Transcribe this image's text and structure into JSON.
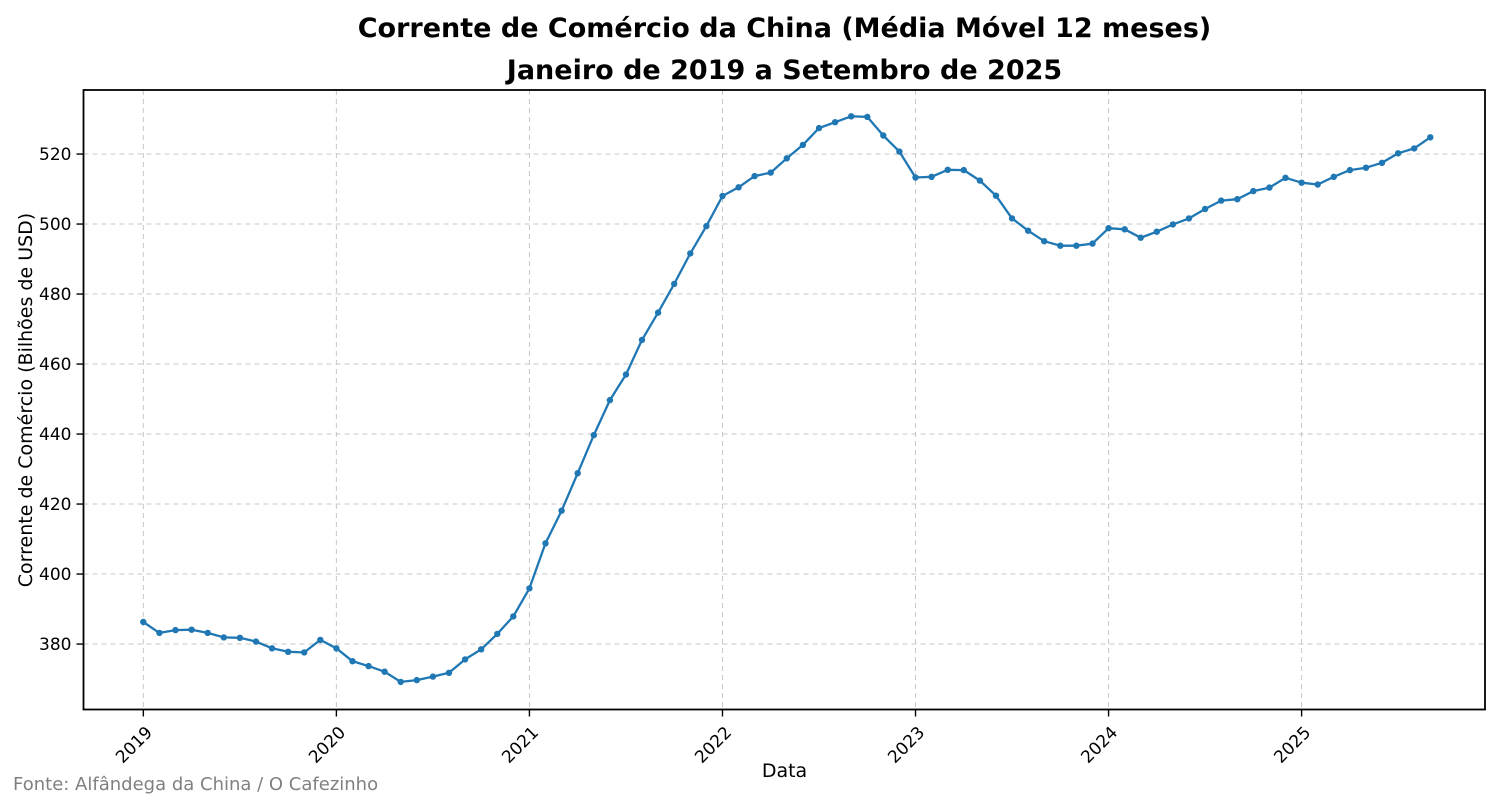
{
  "title": {
    "line1": "Corrente de Comércio da China (Média Móvel 12 meses)",
    "line2": "Janeiro de 2019 a Setembro de 2025"
  },
  "source_note": "Fonte: Alfândega da China / O Cafezinho",
  "colors": {
    "line": "#1f77b4",
    "grid": "#c7c7c7",
    "axis_border": "#000000",
    "tick_label": "#000000",
    "title": "#000000",
    "source": "#808080",
    "background": "#ffffff"
  },
  "chart_data": {
    "type": "line",
    "title": "Corrente de Comércio da China (Média Móvel 12 meses) — Janeiro de 2019 a Setembro de 2025",
    "xlabel": "Data",
    "ylabel": "Corrente de Comércio (Bilhões de USD)",
    "x_start": "2019-01",
    "x_end": "2025-09",
    "frequency": "monthly",
    "x_tick_labels": [
      "2019",
      "2020",
      "2021",
      "2022",
      "2023",
      "2024",
      "2025"
    ],
    "x_tick_month_indices": [
      0,
      12,
      24,
      36,
      48,
      60,
      72
    ],
    "y_ticks": [
      380,
      400,
      420,
      440,
      460,
      480,
      500,
      520
    ],
    "ylim": [
      361.3,
      538.3
    ],
    "xlim_month_indices": [
      -3.72,
      83.4
    ],
    "grid": "dashed",
    "legend": false,
    "marker": "circle",
    "series": [
      {
        "name": "Corrente de Comércio (média móvel 12 meses, bilhões de USD)",
        "color": "#1f77b4",
        "values": [
          386.3,
          383.2,
          384.0,
          384.1,
          383.2,
          381.9,
          381.8,
          380.7,
          378.8,
          377.8,
          377.6,
          381.2,
          378.8,
          375.1,
          373.7,
          372.1,
          369.2,
          369.7,
          370.7,
          371.8,
          375.6,
          378.5,
          382.9,
          387.9,
          395.9,
          408.8,
          418.1,
          428.8,
          439.7,
          449.7,
          457.0,
          466.9,
          474.7,
          482.9,
          491.6,
          499.4,
          508.0,
          510.5,
          513.7,
          514.7,
          518.8,
          522.6,
          527.4,
          529.1,
          530.8,
          530.6,
          525.3,
          520.7,
          513.3,
          513.5,
          515.5,
          515.4,
          512.4,
          508.1,
          501.6,
          498.1,
          495.1,
          493.8,
          493.8,
          494.4,
          498.8,
          498.5,
          496.1,
          497.8,
          499.9,
          501.6,
          504.3,
          506.7,
          507.1,
          509.4,
          510.4,
          513.2,
          511.8,
          511.3,
          513.5,
          515.4,
          516.1,
          517.5,
          520.2,
          521.6,
          524.8
        ]
      }
    ]
  }
}
